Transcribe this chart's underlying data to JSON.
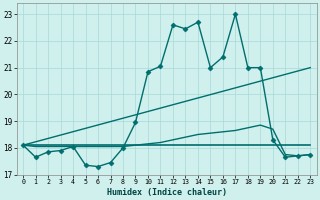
{
  "xlabel": "Humidex (Indice chaleur)",
  "bg_color": "#cff0ec",
  "grid_color": "#a8d8d8",
  "line_color": "#006e6e",
  "xlim": [
    -0.5,
    23.5
  ],
  "ylim": [
    17.0,
    23.4
  ],
  "yticks": [
    17,
    18,
    19,
    20,
    21,
    22,
    23
  ],
  "xticks": [
    0,
    1,
    2,
    3,
    4,
    5,
    6,
    7,
    8,
    9,
    10,
    11,
    12,
    13,
    14,
    15,
    16,
    17,
    18,
    19,
    20,
    21,
    22,
    23
  ],
  "series": [
    {
      "x": [
        0,
        1,
        2,
        3,
        4,
        5,
        6,
        7,
        8,
        9,
        10,
        11,
        12,
        13,
        14,
        15,
        16,
        17,
        18,
        19,
        20,
        21,
        22,
        23
      ],
      "y": [
        18.1,
        17.65,
        17.85,
        17.9,
        18.05,
        17.35,
        17.3,
        17.45,
        18.0,
        18.95,
        20.85,
        21.05,
        22.6,
        22.45,
        22.7,
        21.0,
        21.4,
        23.0,
        21.0,
        21.0,
        18.3,
        17.65,
        17.7,
        17.75
      ],
      "marker": "D",
      "markersize": 2.5,
      "linewidth": 1.0
    },
    {
      "x": [
        0,
        23
      ],
      "y": [
        18.1,
        21.0
      ],
      "marker": null,
      "linewidth": 1.0
    },
    {
      "x": [
        0,
        23
      ],
      "y": [
        18.1,
        18.1
      ],
      "marker": null,
      "linewidth": 1.2
    },
    {
      "x": [
        0,
        1,
        2,
        3,
        4,
        5,
        6,
        7,
        8,
        9,
        10,
        11,
        12,
        13,
        14,
        15,
        16,
        17,
        18,
        19,
        20,
        21,
        22,
        23
      ],
      "y": [
        18.1,
        18.05,
        18.05,
        18.05,
        18.05,
        18.05,
        18.05,
        18.05,
        18.05,
        18.1,
        18.15,
        18.2,
        18.3,
        18.4,
        18.5,
        18.55,
        18.6,
        18.65,
        18.75,
        18.85,
        18.7,
        17.75,
        17.7,
        17.75
      ],
      "marker": null,
      "linewidth": 1.0
    }
  ]
}
